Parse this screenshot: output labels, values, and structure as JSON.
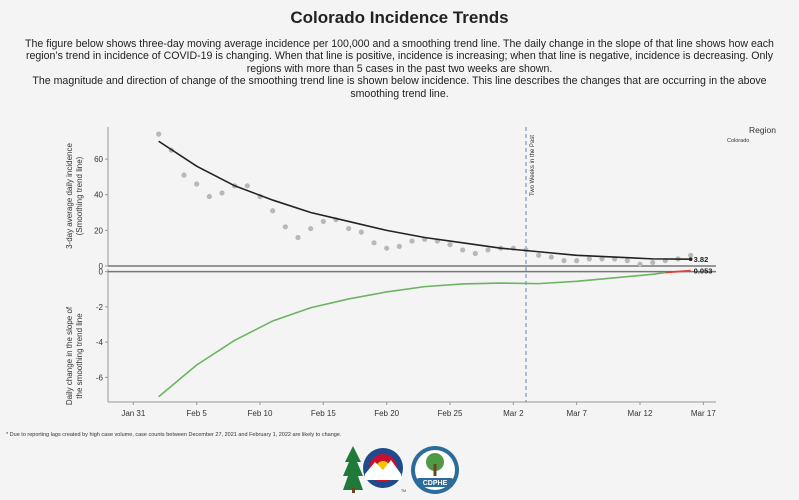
{
  "title": "Colorado Incidence Trends",
  "description_1": "The figure below shows three-day moving average incidence per 100,000 and a smoothing trend line. The daily change in the slope of that line shows how each region’s trend in incidence of COVID-19 is changing. When that line is positive, incidence is increasing; when that line is negative, incidence is decreasing. Only regions with more than 5 cases in the past two weeks are shown.",
  "description_2": "The magnitude and direction of change of the smoothing trend line is shown below incidence. This line describes the changes that are occurring in the above smoothing trend line.",
  "footnote": "* Due to reporting lags created by high case volume, case counts between December 27, 2021 and February 1, 2022 are likely to change.",
  "logos": {
    "cdphe_text": "CDPHE",
    "tm": "TM"
  },
  "colors": {
    "points": "#b8b8b8",
    "trend": "#222222",
    "slope_positive_change": "#6cb461",
    "slope_recent": "#d9443a",
    "marker": "#5d86b8"
  },
  "chart_data": {
    "type": "line",
    "legend": {
      "title": "Region",
      "entries": [
        "Colorado"
      ],
      "placement": "right"
    },
    "x_axis": {
      "type": "date",
      "ticks": [
        "Jan 31",
        "Feb 5",
        "Feb 10",
        "Feb 15",
        "Feb 20",
        "Feb 25",
        "Mar 2",
        "Mar 7",
        "Mar 12",
        "Mar 17"
      ],
      "range": [
        "2022-01-29",
        "2022-03-18"
      ]
    },
    "reference_line": {
      "date": "2022-03-03",
      "label": "Two Weeks in the Past"
    },
    "top_panel": {
      "ylabel": "3-day average daily incidence (Smoothing trend line)",
      "ylim": [
        0,
        78
      ],
      "yticks": [
        0,
        20,
        40,
        60
      ],
      "points": {
        "x": [
          "2022-02-02",
          "2022-02-03",
          "2022-02-04",
          "2022-02-05",
          "2022-02-06",
          "2022-02-07",
          "2022-02-08",
          "2022-02-09",
          "2022-02-10",
          "2022-02-11",
          "2022-02-12",
          "2022-02-13",
          "2022-02-14",
          "2022-02-15",
          "2022-02-16",
          "2022-02-17",
          "2022-02-18",
          "2022-02-19",
          "2022-02-20",
          "2022-02-21",
          "2022-02-22",
          "2022-02-23",
          "2022-02-24",
          "2022-02-25",
          "2022-02-26",
          "2022-02-27",
          "2022-02-28",
          "2022-03-01",
          "2022-03-02",
          "2022-03-03",
          "2022-03-04",
          "2022-03-05",
          "2022-03-06",
          "2022-03-07",
          "2022-03-08",
          "2022-03-09",
          "2022-03-10",
          "2022-03-11",
          "2022-03-12",
          "2022-03-13",
          "2022-03-14",
          "2022-03-15",
          "2022-03-16"
        ],
        "y": [
          74,
          65,
          51,
          46,
          39,
          41,
          45,
          45,
          39,
          31,
          22,
          16,
          21,
          25,
          26,
          21,
          19,
          13,
          10,
          11,
          14,
          15,
          14,
          12,
          9,
          7,
          9,
          10,
          10,
          9,
          6,
          5,
          3,
          3,
          4,
          4,
          4,
          3,
          1,
          2,
          3,
          4,
          6
        ]
      },
      "trend": {
        "x": [
          "2022-02-02",
          "2022-02-05",
          "2022-02-08",
          "2022-02-11",
          "2022-02-14",
          "2022-02-17",
          "2022-02-20",
          "2022-02-23",
          "2022-02-26",
          "2022-03-01",
          "2022-03-04",
          "2022-03-07",
          "2022-03-10",
          "2022-03-13",
          "2022-03-16"
        ],
        "y": [
          70,
          56,
          45,
          37,
          30,
          25,
          20,
          16,
          13,
          10,
          8,
          6,
          5,
          4,
          3.82
        ]
      },
      "end_label": "3.82"
    },
    "bottom_panel": {
      "ylabel": "Daily change in the slope of the smoothing trend line",
      "ylim": [
        -7.4,
        0.15
      ],
      "yticks": [
        0,
        -2,
        -4,
        -6
      ],
      "slope": {
        "x": [
          "2022-02-02",
          "2022-02-05",
          "2022-02-08",
          "2022-02-11",
          "2022-02-14",
          "2022-02-17",
          "2022-02-20",
          "2022-02-23",
          "2022-02-26",
          "2022-03-01",
          "2022-03-04",
          "2022-03-07",
          "2022-03-10",
          "2022-03-13",
          "2022-03-14",
          "2022-03-16"
        ],
        "y": [
          -7.1,
          -5.3,
          -3.9,
          -2.8,
          -2.05,
          -1.55,
          -1.15,
          -0.85,
          -0.7,
          -0.65,
          -0.68,
          -0.55,
          -0.35,
          -0.15,
          -0.05,
          0.053
        ]
      },
      "red_from": "2022-03-14",
      "end_label": "0.053"
    }
  }
}
